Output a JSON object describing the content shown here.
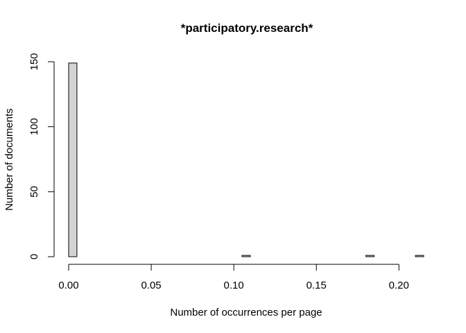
{
  "chart_data": {
    "type": "bar",
    "subtype": "histogram",
    "title": "*participatory.research*",
    "xlabel": "Number of occurrences per page",
    "ylabel": "Number of documents",
    "bin_width": 0.005,
    "bins": [
      {
        "start": 0.0,
        "end": 0.005,
        "count": 149
      },
      {
        "start": 0.105,
        "end": 0.11,
        "count": 1
      },
      {
        "start": 0.18,
        "end": 0.185,
        "count": 1
      },
      {
        "start": 0.21,
        "end": 0.215,
        "count": 1
      }
    ],
    "xlim": [
      0,
      0.215
    ],
    "ylim": [
      0,
      150
    ],
    "x_ticks": [
      0.0,
      0.05,
      0.1,
      0.15,
      0.2
    ],
    "x_tick_labels": [
      "0.00",
      "0.05",
      "0.10",
      "0.15",
      "0.20"
    ],
    "y_ticks": [
      0,
      50,
      100,
      150
    ],
    "y_tick_labels": [
      "0",
      "50",
      "100",
      "150"
    ],
    "bar_fill": "#d3d3d3",
    "bar_stroke": "#000000",
    "grid": false,
    "legend": "none"
  }
}
